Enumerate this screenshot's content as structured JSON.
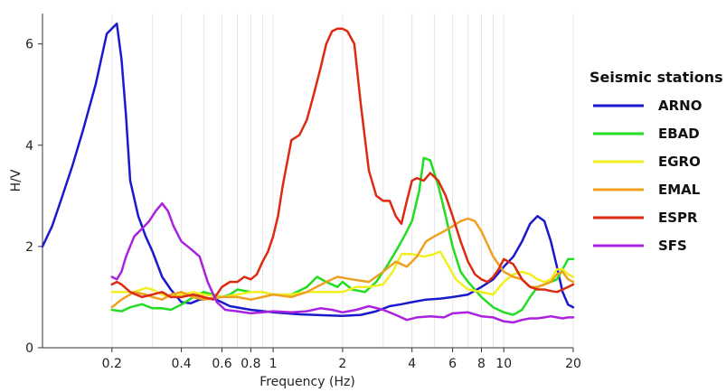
{
  "chart_data": {
    "type": "line",
    "xlabel": "Frequency (Hz)",
    "ylabel": "H/V",
    "xscale": "log",
    "xlim": [
      0.1,
      20
    ],
    "ylim": [
      0,
      6.6
    ],
    "xticks": [
      0.2,
      0.4,
      0.6,
      0.8,
      1,
      2,
      4,
      6,
      8,
      10,
      20
    ],
    "xtick_labels": [
      "0.2",
      "0.4",
      "0.6",
      "0.8",
      "1",
      "2",
      "4",
      "6",
      "8",
      "10",
      "20"
    ],
    "yticks": [
      0,
      2,
      4,
      6
    ],
    "ytick_labels": [
      "0",
      "2",
      "4",
      "6"
    ],
    "grid": "vertical minor lines on log x-axis",
    "legend": {
      "title": "Seismic stations",
      "placement": "right"
    },
    "series": [
      {
        "name": "ARNO",
        "color": "#1a1acc",
        "x": [
          0.1,
          0.11,
          0.12,
          0.135,
          0.15,
          0.17,
          0.19,
          0.21,
          0.22,
          0.23,
          0.24,
          0.26,
          0.28,
          0.3,
          0.33,
          0.36,
          0.4,
          0.44,
          0.48,
          0.55,
          0.65,
          0.8,
          1.0,
          1.3,
          1.7,
          2.0,
          2.4,
          2.8,
          3.2,
          3.6,
          4.0,
          4.6,
          5.3,
          6.0,
          7.0,
          8.0,
          9.0,
          10.0,
          11.0,
          12.0,
          13.0,
          14.0,
          15.0,
          16.0,
          17.0,
          18.0,
          19.0,
          20.0
        ],
        "y": [
          2.0,
          2.4,
          2.9,
          3.6,
          4.3,
          5.2,
          6.2,
          6.4,
          5.7,
          4.6,
          3.3,
          2.6,
          2.2,
          1.9,
          1.4,
          1.15,
          0.9,
          0.88,
          0.95,
          0.98,
          0.82,
          0.75,
          0.7,
          0.66,
          0.64,
          0.63,
          0.65,
          0.72,
          0.82,
          0.86,
          0.9,
          0.95,
          0.97,
          1.0,
          1.05,
          1.2,
          1.35,
          1.6,
          1.8,
          2.1,
          2.45,
          2.6,
          2.5,
          2.1,
          1.6,
          1.1,
          0.85,
          0.8
        ]
      },
      {
        "name": "EBAD",
        "color": "#22dd22",
        "x": [
          0.2,
          0.22,
          0.24,
          0.27,
          0.3,
          0.33,
          0.36,
          0.4,
          0.45,
          0.5,
          0.55,
          0.6,
          0.65,
          0.7,
          0.8,
          0.9,
          1.0,
          1.2,
          1.4,
          1.55,
          1.7,
          1.9,
          2.0,
          2.2,
          2.5,
          2.8,
          3.1,
          3.4,
          3.7,
          4.0,
          4.3,
          4.5,
          4.8,
          5.2,
          5.6,
          6.0,
          6.5,
          7.0,
          8.0,
          9.0,
          10.0,
          11.0,
          12.0,
          13.0,
          14.0,
          15.0,
          16.0,
          17.0,
          18.0,
          19.0,
          20.0
        ],
        "y": [
          0.75,
          0.72,
          0.8,
          0.86,
          0.78,
          0.78,
          0.75,
          0.85,
          1.0,
          1.1,
          1.05,
          1.0,
          1.05,
          1.15,
          1.1,
          1.1,
          1.05,
          1.05,
          1.2,
          1.4,
          1.3,
          1.2,
          1.3,
          1.15,
          1.1,
          1.3,
          1.6,
          1.9,
          2.2,
          2.5,
          3.1,
          3.75,
          3.7,
          3.2,
          2.6,
          2.0,
          1.5,
          1.3,
          1.0,
          0.8,
          0.7,
          0.65,
          0.75,
          1.0,
          1.2,
          1.25,
          1.3,
          1.35,
          1.55,
          1.75,
          1.75
        ]
      },
      {
        "name": "EGRO",
        "color": "#f0f020",
        "x": [
          0.2,
          0.22,
          0.25,
          0.28,
          0.3,
          0.33,
          0.36,
          0.4,
          0.45,
          0.5,
          0.6,
          0.7,
          0.8,
          0.9,
          1.0,
          1.2,
          1.4,
          1.7,
          2.0,
          2.3,
          2.6,
          3.0,
          3.3,
          3.6,
          4.0,
          4.5,
          5.0,
          5.3,
          5.7,
          6.2,
          7.0,
          8.0,
          9.0,
          10.0,
          11.0,
          12.0,
          13.0,
          14.0,
          15.0,
          16.0,
          17.0,
          18.0,
          19.0,
          20.0
        ],
        "y": [
          1.1,
          1.1,
          1.1,
          1.18,
          1.15,
          1.05,
          1.0,
          1.05,
          1.1,
          1.05,
          1.0,
          1.05,
          1.1,
          1.1,
          1.05,
          1.05,
          1.1,
          1.1,
          1.1,
          1.2,
          1.2,
          1.25,
          1.5,
          1.85,
          1.85,
          1.8,
          1.85,
          1.9,
          1.65,
          1.35,
          1.15,
          1.1,
          1.05,
          1.3,
          1.45,
          1.5,
          1.45,
          1.35,
          1.3,
          1.35,
          1.55,
          1.55,
          1.45,
          1.4
        ]
      },
      {
        "name": "EMAL",
        "color": "#f0a020",
        "x": [
          0.2,
          0.22,
          0.25,
          0.28,
          0.3,
          0.33,
          0.36,
          0.4,
          0.45,
          0.5,
          0.6,
          0.7,
          0.8,
          0.9,
          1.0,
          1.2,
          1.4,
          1.7,
          1.9,
          2.2,
          2.6,
          3.0,
          3.4,
          3.8,
          4.2,
          4.6,
          5.0,
          5.5,
          6.0,
          6.5,
          7.0,
          7.5,
          8.0,
          9.0,
          10.0,
          11.0,
          12.0,
          13.0,
          14.0,
          15.0,
          16.0,
          17.0,
          18.0,
          19.0,
          20.0
        ],
        "y": [
          0.8,
          0.95,
          1.1,
          1.05,
          1.0,
          0.95,
          1.05,
          1.1,
          1.0,
          0.95,
          1.0,
          1.0,
          0.95,
          1.0,
          1.05,
          1.0,
          1.1,
          1.3,
          1.4,
          1.35,
          1.3,
          1.5,
          1.7,
          1.6,
          1.8,
          2.1,
          2.2,
          2.3,
          2.4,
          2.5,
          2.55,
          2.5,
          2.3,
          1.8,
          1.5,
          1.4,
          1.35,
          1.2,
          1.2,
          1.25,
          1.3,
          1.45,
          1.5,
          1.35,
          1.3
        ]
      },
      {
        "name": "ESPR",
        "color": "#dd2a10",
        "x": [
          0.2,
          0.21,
          0.22,
          0.24,
          0.27,
          0.3,
          0.33,
          0.36,
          0.4,
          0.45,
          0.5,
          0.55,
          0.6,
          0.65,
          0.7,
          0.75,
          0.8,
          0.85,
          0.9,
          0.95,
          1.0,
          1.05,
          1.1,
          1.2,
          1.3,
          1.4,
          1.5,
          1.6,
          1.7,
          1.8,
          1.9,
          2.0,
          2.1,
          2.25,
          2.4,
          2.6,
          2.8,
          3.0,
          3.2,
          3.4,
          3.6,
          3.8,
          4.0,
          4.2,
          4.5,
          4.8,
          5.2,
          5.6,
          6.0,
          6.5,
          7.0,
          7.5,
          8.0,
          8.5,
          9.0,
          9.5,
          10.0,
          11.0,
          12.0,
          13.0,
          14.0,
          15.0,
          16.0,
          17.0,
          18.0,
          19.0,
          20.0
        ],
        "y": [
          1.25,
          1.3,
          1.25,
          1.1,
          1.0,
          1.05,
          1.1,
          1.0,
          1.0,
          1.05,
          1.0,
          0.95,
          1.2,
          1.3,
          1.3,
          1.4,
          1.35,
          1.45,
          1.7,
          1.9,
          2.2,
          2.6,
          3.2,
          4.1,
          4.2,
          4.5,
          5.0,
          5.5,
          6.0,
          6.25,
          6.3,
          6.3,
          6.25,
          6.0,
          4.8,
          3.5,
          3.0,
          2.9,
          2.9,
          2.6,
          2.45,
          2.9,
          3.3,
          3.35,
          3.3,
          3.45,
          3.3,
          3.0,
          2.6,
          2.1,
          1.7,
          1.45,
          1.35,
          1.3,
          1.4,
          1.55,
          1.75,
          1.65,
          1.35,
          1.2,
          1.15,
          1.15,
          1.12,
          1.1,
          1.15,
          1.2,
          1.25
        ]
      },
      {
        "name": "SFS",
        "color": "#aa22dd",
        "x": [
          0.2,
          0.21,
          0.22,
          0.23,
          0.25,
          0.27,
          0.29,
          0.31,
          0.33,
          0.35,
          0.37,
          0.4,
          0.44,
          0.48,
          0.52,
          0.57,
          0.62,
          0.7,
          0.8,
          0.9,
          1.0,
          1.2,
          1.4,
          1.6,
          1.8,
          2.0,
          2.3,
          2.6,
          3.0,
          3.4,
          3.8,
          4.2,
          4.8,
          5.5,
          6.0,
          7.0,
          8.0,
          9.0,
          10.0,
          11.0,
          12.0,
          13.0,
          14.0,
          15.0,
          16.0,
          17.0,
          18.0,
          19.0,
          20.0
        ],
        "y": [
          1.4,
          1.35,
          1.5,
          1.8,
          2.2,
          2.35,
          2.5,
          2.7,
          2.85,
          2.7,
          2.4,
          2.1,
          1.95,
          1.8,
          1.3,
          0.9,
          0.75,
          0.72,
          0.68,
          0.7,
          0.72,
          0.7,
          0.72,
          0.78,
          0.75,
          0.7,
          0.75,
          0.82,
          0.75,
          0.65,
          0.55,
          0.6,
          0.62,
          0.6,
          0.68,
          0.7,
          0.62,
          0.6,
          0.52,
          0.5,
          0.55,
          0.58,
          0.58,
          0.6,
          0.62,
          0.6,
          0.58,
          0.6,
          0.6
        ]
      }
    ]
  }
}
